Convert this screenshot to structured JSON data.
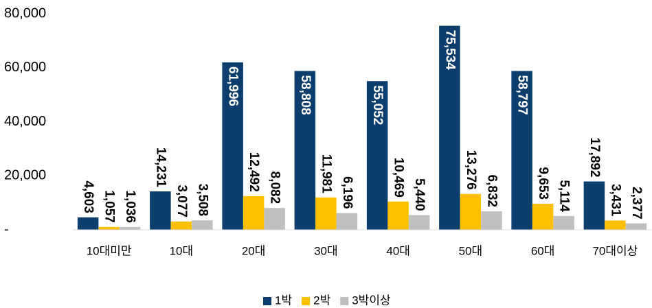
{
  "chart_data": {
    "type": "bar",
    "categories": [
      "10대미만",
      "10대",
      "20대",
      "30대",
      "40대",
      "50대",
      "60대",
      "70대이상"
    ],
    "series": [
      {
        "name": "1박",
        "color": "#0b3e6c",
        "values": [
          4603,
          14231,
          61996,
          58808,
          55052,
          75534,
          58797,
          17892
        ],
        "value_labels": [
          "4,603",
          "14,231",
          "61,996",
          "58,808",
          "55,052",
          "75,534",
          "58,797",
          "17,892"
        ]
      },
      {
        "name": "2박",
        "color": "#ffc000",
        "values": [
          1057,
          3077,
          12492,
          11981,
          10469,
          13276,
          9653,
          3431
        ],
        "value_labels": [
          "1,057",
          "3,077",
          "12,492",
          "11,981",
          "10,469",
          "13,276",
          "9,653",
          "3,431"
        ]
      },
      {
        "name": "3박이상",
        "color": "#c0c0c0",
        "values": [
          1036,
          3508,
          8082,
          6196,
          5440,
          6832,
          5114,
          2377
        ],
        "value_labels": [
          "1,036",
          "3,508",
          "8,082",
          "6,196",
          "5,440",
          "6,832",
          "5,114",
          "2,377"
        ]
      }
    ],
    "ylim": [
      0,
      80000
    ],
    "yticks": [
      {
        "value": 0,
        "label": "-"
      },
      {
        "value": 20000,
        "label": "20,000"
      },
      {
        "value": 40000,
        "label": "40,000"
      },
      {
        "value": 60000,
        "label": "60,000"
      },
      {
        "value": 80000,
        "label": "80,000"
      }
    ],
    "legend": "bottom"
  }
}
